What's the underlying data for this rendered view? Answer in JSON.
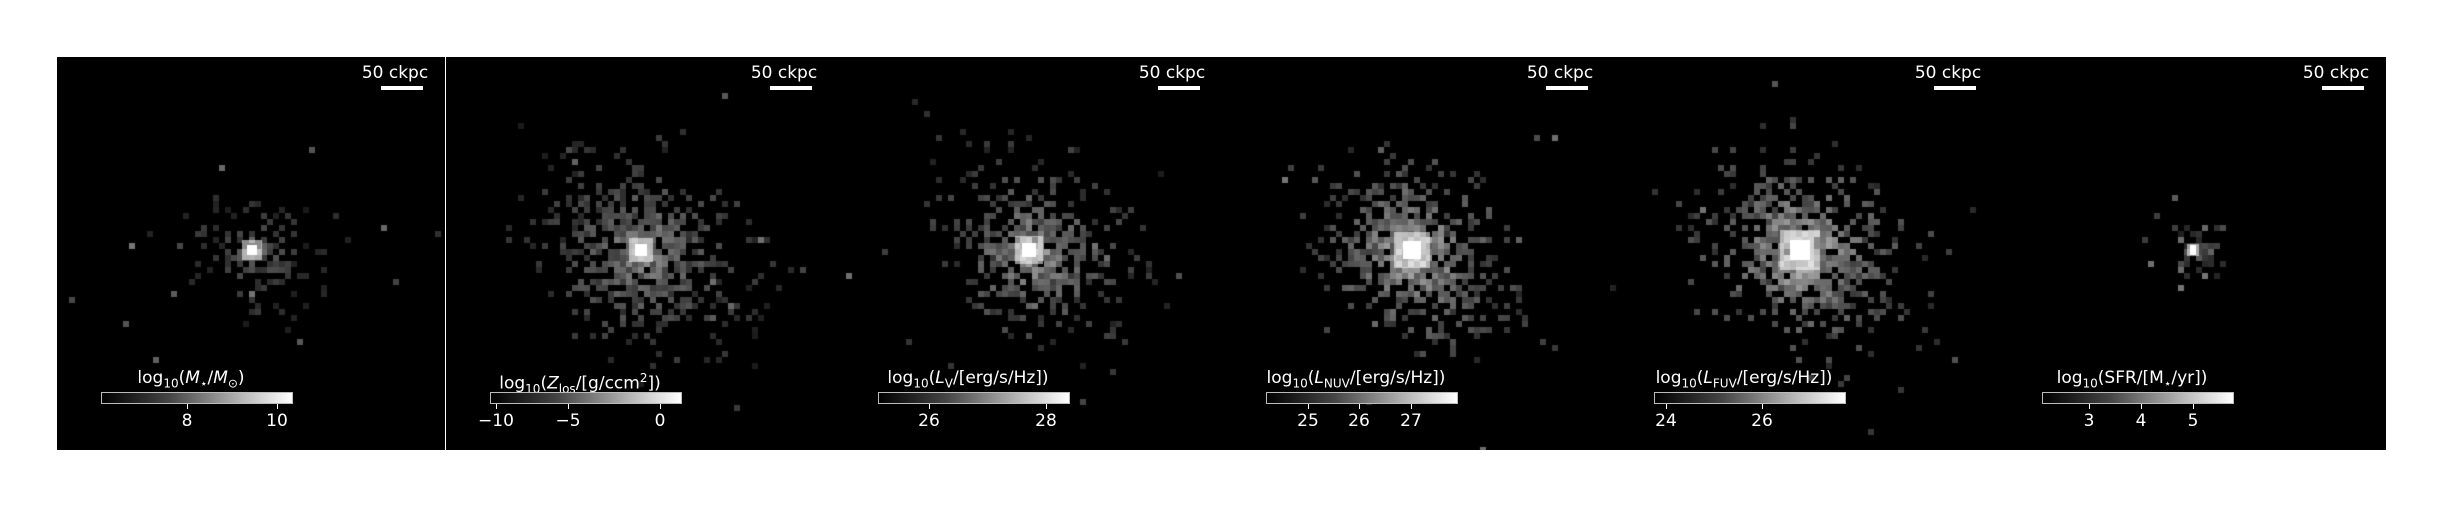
{
  "panels": [
    {
      "scale_label": "50 ckpc",
      "colorbar_label": "log10(M⋆/M⊙)",
      "ticks": [
        "8",
        "10"
      ],
      "quantity": "stellar mass"
    },
    {
      "scale_label": "50 ckpc",
      "colorbar_label": "log10(Zlos/[g/ccm²])",
      "ticks": [
        "−10",
        "−5",
        "0"
      ],
      "quantity": "metallicity"
    },
    {
      "scale_label": "50 ckpc",
      "colorbar_label": "log10(LV/[erg/s/Hz])",
      "ticks": [
        "26",
        "28"
      ],
      "quantity": "V-band luminosity"
    },
    {
      "scale_label": "50 ckpc",
      "colorbar_label": "log10(LNUV/[erg/s/Hz])",
      "ticks": [
        "25",
        "26",
        "27"
      ],
      "quantity": "NUV luminosity"
    },
    {
      "scale_label": "50 ckpc",
      "colorbar_label": "log10(LFUV/[erg/s/Hz])",
      "ticks": [
        "24",
        "26"
      ],
      "quantity": "FUV luminosity"
    },
    {
      "scale_label": "50 ckpc",
      "colorbar_label": "log10(SFR/[M⋆/yr])",
      "ticks": [
        "3",
        "4",
        "5"
      ],
      "quantity": "star formation rate"
    }
  ]
}
